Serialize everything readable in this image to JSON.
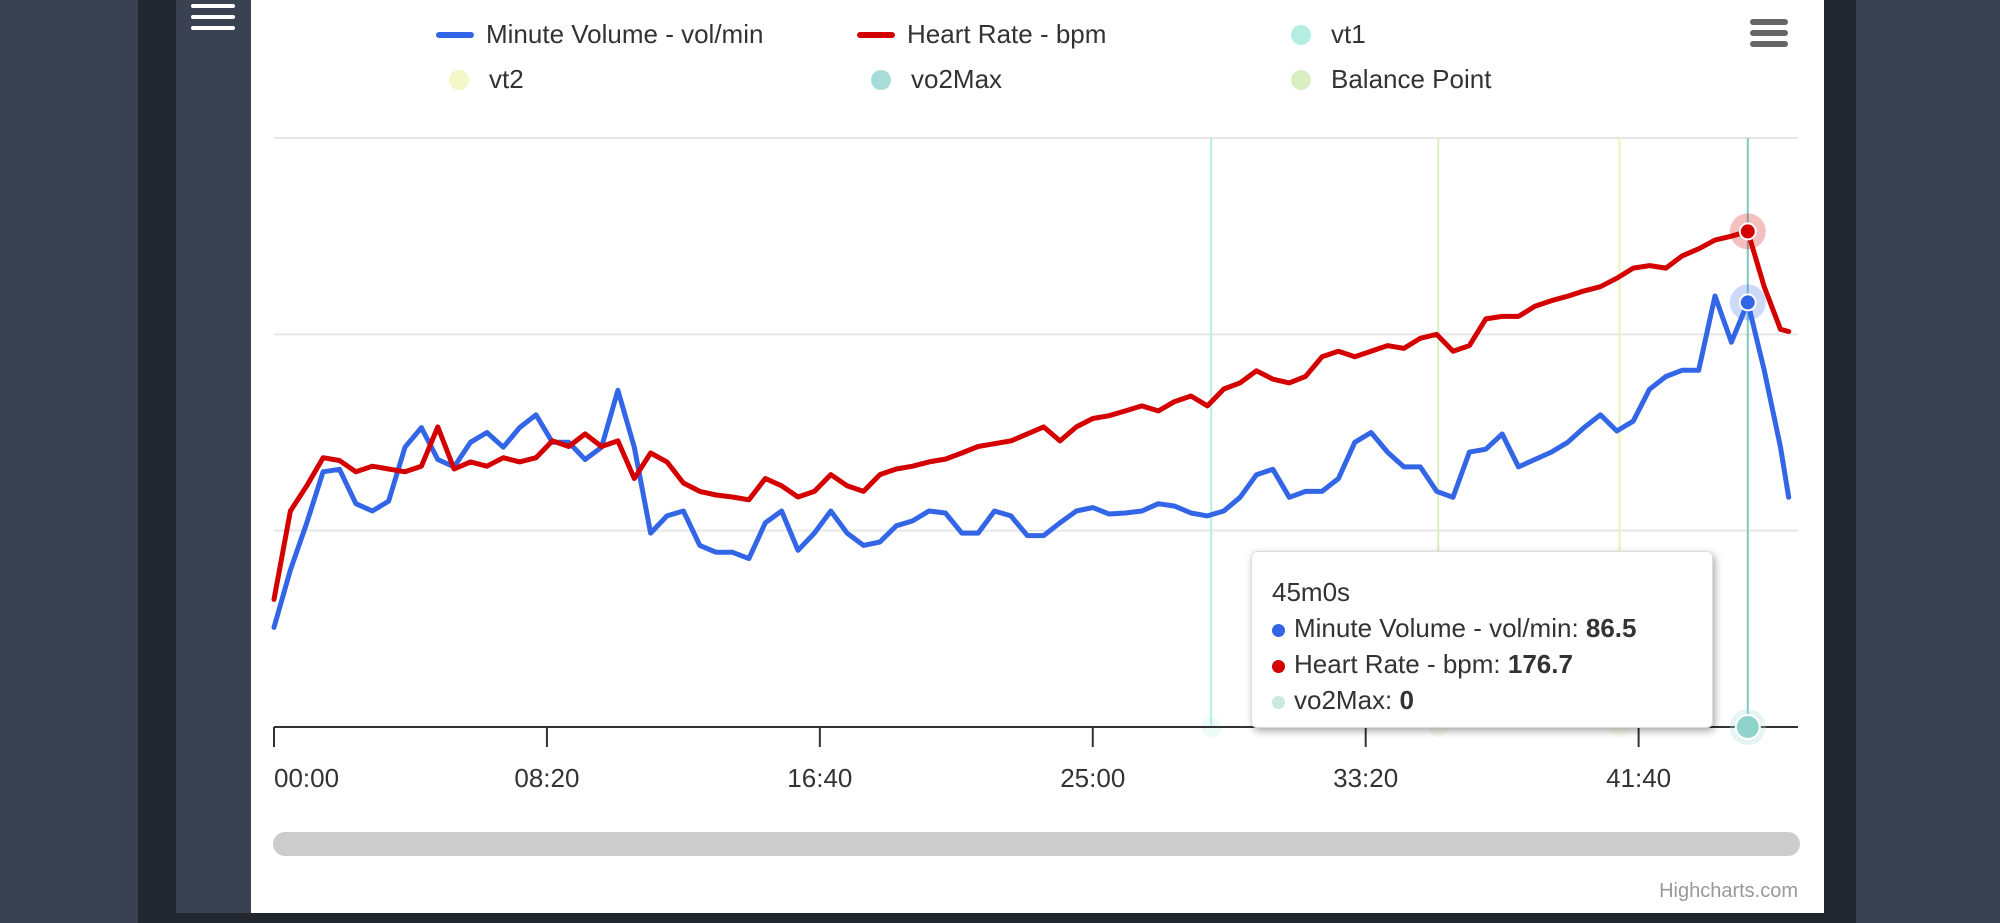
{
  "legend": {
    "items": [
      {
        "label": "Minute Volume - vol/min",
        "type": "line",
        "color": "#3366e6"
      },
      {
        "label": "Heart Rate - bpm",
        "type": "line",
        "color": "#d40000"
      },
      {
        "label": "vt1",
        "type": "dot",
        "color": "#b4eee2"
      },
      {
        "label": "vt2",
        "type": "dot",
        "color": "#f4f6c8"
      },
      {
        "label": "vo2Max",
        "type": "dot",
        "color": "#a6ddd8"
      },
      {
        "label": "Balance Point",
        "type": "dot",
        "color": "#d9efc2"
      }
    ]
  },
  "tooltip": {
    "title": "45m0s",
    "rows": [
      {
        "label": "Minute Volume - vol/min: ",
        "value": "86.5",
        "color": "#3366e6"
      },
      {
        "label": "Heart Rate - bpm: ",
        "value": "176.7",
        "color": "#d40000"
      },
      {
        "label": "vo2Max: ",
        "value": "0",
        "color": "#cce6e2"
      }
    ]
  },
  "credits": "Highcharts.com",
  "chart_data": {
    "type": "line",
    "title": "",
    "xlabel": "",
    "ylabel": "",
    "x_unit": "seconds",
    "xlim": [
      0,
      2792
    ],
    "x_ticks": [
      0,
      500,
      1000,
      1500,
      2000,
      2500
    ],
    "x_tick_labels": [
      "00:00",
      "08:20",
      "16:40",
      "25:00",
      "33:20",
      "41:40"
    ],
    "y_axes": {
      "minute_volume": [
        0,
        120
      ],
      "heart_rate": [
        0,
        210
      ]
    },
    "grid": true,
    "legend_position": "top",
    "x": [
      0,
      30,
      60,
      90,
      120,
      150,
      180,
      210,
      240,
      270,
      300,
      330,
      360,
      390,
      420,
      450,
      480,
      510,
      540,
      570,
      600,
      630,
      660,
      690,
      720,
      750,
      780,
      810,
      840,
      870,
      900,
      930,
      960,
      990,
      1020,
      1050,
      1080,
      1110,
      1140,
      1170,
      1200,
      1230,
      1260,
      1290,
      1320,
      1350,
      1380,
      1410,
      1440,
      1470,
      1500,
      1530,
      1560,
      1590,
      1620,
      1650,
      1680,
      1710,
      1740,
      1770,
      1800,
      1830,
      1860,
      1890,
      1920,
      1950,
      1980,
      2010,
      2040,
      2070,
      2100,
      2130,
      2160,
      2190,
      2220,
      2250,
      2280,
      2310,
      2340,
      2370,
      2400,
      2430,
      2460,
      2490,
      2520,
      2550,
      2580,
      2610,
      2640,
      2670,
      2700,
      2730,
      2760,
      2775
    ],
    "series": [
      {
        "name": "Minute Volume - vol/min",
        "axis": "minute_volume",
        "color": "#3366e6",
        "values": [
          20.3,
          32,
          41.6,
          52,
          52.5,
          45.5,
          44,
          46,
          57,
          61,
          54.5,
          53,
          58,
          60,
          57,
          61,
          63.6,
          58,
          58,
          54.5,
          57,
          68.6,
          57,
          39.5,
          43,
          44,
          37,
          35.6,
          35.6,
          34.3,
          41.6,
          44,
          36,
          39.5,
          44,
          39.5,
          37,
          37.7,
          41,
          42,
          44,
          43.6,
          39.5,
          39.5,
          44,
          43,
          39,
          39,
          41.6,
          44,
          44.7,
          43.4,
          43.6,
          44,
          45.5,
          45,
          43.6,
          43,
          44,
          46.8,
          51.4,
          52.5,
          46.8,
          48,
          48,
          50.6,
          58,
          60,
          56,
          53,
          53,
          48,
          46.8,
          56,
          56.6,
          59.7,
          53,
          54.5,
          56,
          58,
          61,
          63.6,
          60.3,
          62.3,
          68.8,
          71.4,
          72.7,
          72.7,
          87.8,
          78.4,
          86.5,
          72.7,
          57,
          46.8
        ]
      },
      {
        "name": "Heart Rate - bpm",
        "axis": "heart_rate",
        "color": "#d40000",
        "values": [
          45.5,
          77,
          86,
          96,
          95,
          91,
          93,
          92,
          91,
          93,
          107,
          92,
          94.5,
          93,
          96,
          94.5,
          96,
          102,
          100,
          104.5,
          100,
          102,
          88.6,
          97.7,
          94.5,
          87,
          84,
          82.7,
          82,
          81,
          88.6,
          86,
          82,
          84,
          90,
          86,
          84,
          90,
          92,
          93,
          94.5,
          95.5,
          97.7,
          100,
          101,
          102,
          104.5,
          107,
          102,
          107,
          110,
          111,
          112.7,
          114.5,
          112.7,
          116,
          118,
          114.5,
          120.5,
          122.7,
          127,
          124,
          122.7,
          125,
          132,
          134,
          132,
          134,
          136,
          135,
          138.6,
          140,
          134,
          136,
          145.5,
          146.4,
          146.4,
          150,
          152,
          153.6,
          155.5,
          157,
          160,
          163.6,
          164.5,
          163.6,
          168,
          170.5,
          173.6,
          175,
          176.7,
          157,
          141.8,
          141
        ]
      }
    ],
    "plot_lines": [
      {
        "name": "vt1",
        "x": 1717,
        "color": "#b4eee2"
      },
      {
        "name": "Balance Point",
        "x": 2133,
        "color": "#d9efc2"
      },
      {
        "name": "vt2",
        "x": 2465,
        "color": "#f0f2b4"
      },
      {
        "name": "vo2Max",
        "x": 2700,
        "color": "#7fc9c2"
      }
    ],
    "highlight_x": 2700,
    "highlight_index": 90
  }
}
